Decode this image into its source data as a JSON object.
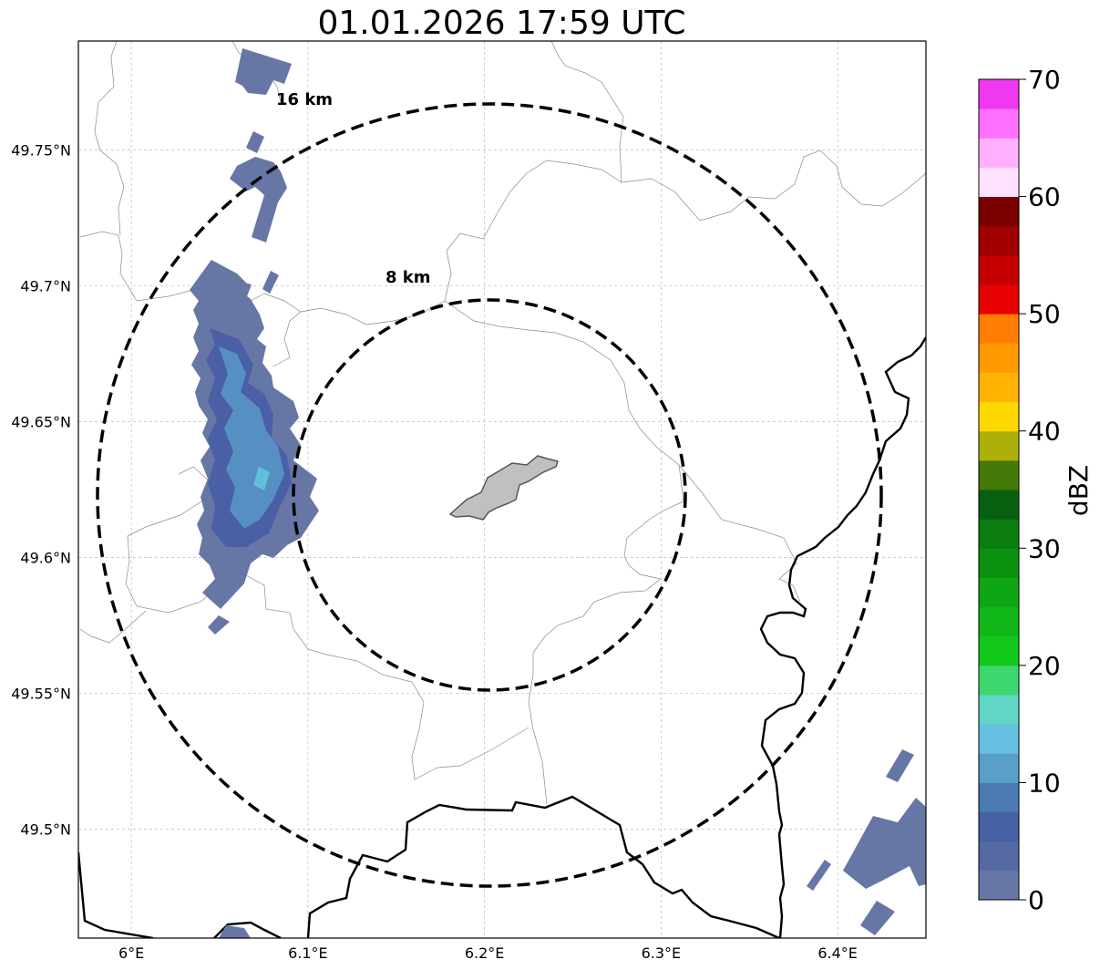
{
  "title": "01.01.2026 17:59 UTC",
  "map": {
    "lon_range": [
      5.97,
      6.45
    ],
    "lat_range": [
      49.46,
      49.79
    ],
    "lon_ticks": [
      {
        "value": 6.0,
        "label": "6°E"
      },
      {
        "value": 6.1,
        "label": "6.1°E"
      },
      {
        "value": 6.2,
        "label": "6.2°E"
      },
      {
        "value": 6.3,
        "label": "6.3°E"
      },
      {
        "value": 6.4,
        "label": "6.4°E"
      }
    ],
    "lat_ticks": [
      {
        "value": 49.5,
        "label": "49.5°N"
      },
      {
        "value": 49.55,
        "label": "49.55°N"
      },
      {
        "value": 49.6,
        "label": "49.6°N"
      },
      {
        "value": 49.65,
        "label": "49.65°N"
      },
      {
        "value": 49.7,
        "label": "49.7°N"
      },
      {
        "value": 49.75,
        "label": "49.75°N"
      }
    ],
    "grid": true,
    "center": {
      "lon": 6.203,
      "lat": 49.623
    },
    "range_rings": [
      {
        "radius_km": 8,
        "label": "8 km"
      },
      {
        "radius_km": 16,
        "label": "16 km"
      }
    ]
  },
  "colorbar": {
    "label": "dBZ",
    "min": 0,
    "max": 70,
    "ticks": [
      0,
      10,
      20,
      30,
      40,
      50,
      60,
      70
    ],
    "colors": [
      "#6677a6",
      "#5468a4",
      "#4660a3",
      "#4a7ab0",
      "#58a0c8",
      "#64bfe0",
      "#60d6c6",
      "#3ed66e",
      "#12c81a",
      "#10b618",
      "#0fa614",
      "#0c9010",
      "#0a7d0e",
      "#066010",
      "#457a08",
      "#adb00a",
      "#fed900",
      "#ffb300",
      "#ff9a00",
      "#ff7d00",
      "#e60000",
      "#c60000",
      "#a00000",
      "#7a0000",
      "#ffe0ff",
      "#ffb0ff",
      "#ff70ff",
      "#f038f0"
    ]
  },
  "colors": {
    "echo": "#6677a6",
    "echo_dark": "#4a5fa5",
    "echo_mid": "#5690c2",
    "echo_light": "#5fc0dc",
    "urban_area": "#c0c0c0"
  }
}
